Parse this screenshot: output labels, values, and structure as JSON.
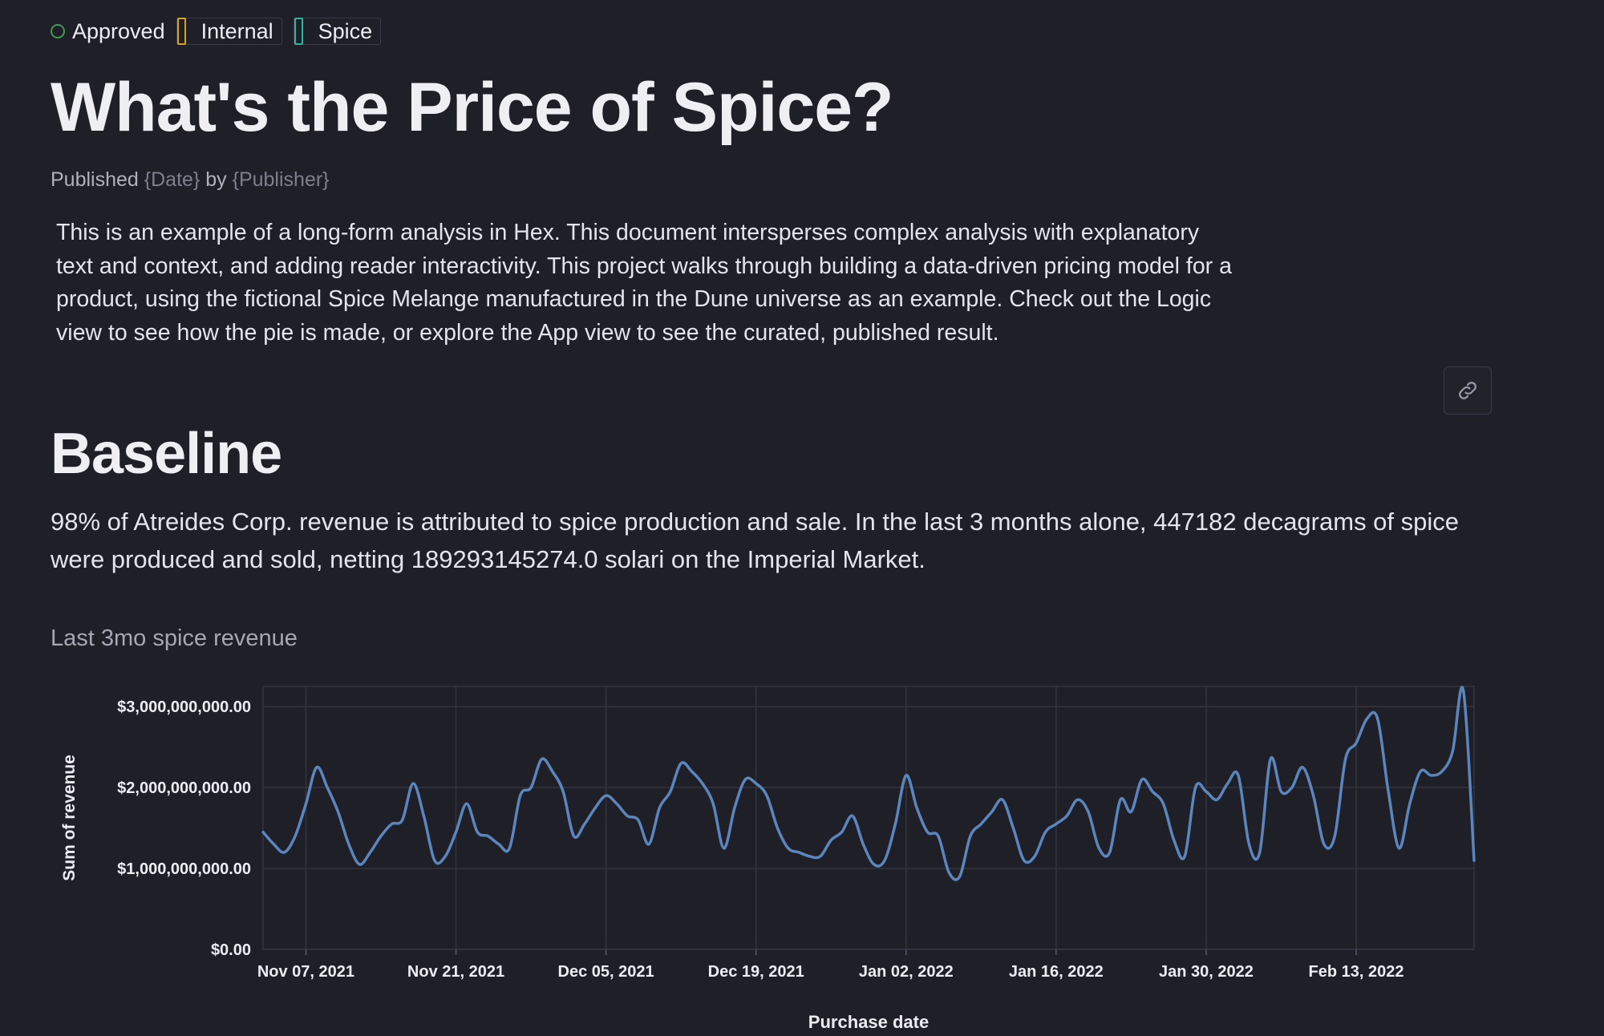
{
  "tags": {
    "approved": "Approved",
    "internal": "Internal",
    "spice": "Spice"
  },
  "colors": {
    "accent_line": "#5b86bd",
    "approved": "#3d9a53",
    "internal": "#d3a429",
    "spice": "#2eb5a2",
    "background": "#1f1f28"
  },
  "title": "What's the Price of Spice?",
  "published": {
    "prefix": "Published",
    "date": "{Date}",
    "by": "by",
    "publisher": "{Publisher}"
  },
  "intro": "This is an example of a long-form analysis in Hex. This document intersperses complex analysis with explanatory text and context, and adding reader interactivity. This project walks through building a data-driven pricing model for a product, using the fictional Spice Melange manufactured in the Dune universe as an example. Check out the Logic view to see how the pie is made, or explore the App view to see the curated, published result.",
  "link_icon": "link-icon",
  "section_title": "Baseline",
  "summary": "98% of Atreides Corp. revenue is attributed to spice production and sale. In the last 3 months alone, 447182  decagrams of spice were produced and sold, netting 189293145274.0 solari on the Imperial Market.",
  "chart_data": {
    "type": "line",
    "title": "Last 3mo spice revenue",
    "xlabel": "Purchase date",
    "ylabel": "Sum of revenue",
    "ylim": [
      0,
      3250000000
    ],
    "yticks": [
      0,
      1000000000,
      2000000000,
      3000000000
    ],
    "ytick_labels": [
      "$0.00",
      "$1,000,000,000.00",
      "$2,000,000,000.00",
      "$3,000,000,000.00"
    ],
    "x_start": "Nov 03, 2021",
    "x_end": "Feb 24, 2022",
    "xticks": [
      "Nov 07, 2021",
      "Nov 21, 2021",
      "Dec 05, 2021",
      "Dec 19, 2021",
      "Jan 02, 2022",
      "Jan 16, 2022",
      "Jan 30, 2022",
      "Feb 13, 2022"
    ],
    "xtick_days": [
      4,
      18,
      32,
      46,
      60,
      74,
      88,
      102
    ],
    "grid": true,
    "series": [
      {
        "name": "Sum of revenue",
        "x_days": [
          0,
          1,
          2,
          3,
          4,
          5,
          6,
          7,
          8,
          9,
          10,
          11,
          12,
          13,
          14,
          15,
          16,
          17,
          18,
          19,
          20,
          21,
          22,
          23,
          24,
          25,
          26,
          27,
          28,
          29,
          30,
          31,
          32,
          33,
          34,
          35,
          36,
          37,
          38,
          39,
          40,
          41,
          42,
          43,
          44,
          45,
          46,
          47,
          48,
          49,
          50,
          51,
          52,
          53,
          54,
          55,
          56,
          57,
          58,
          59,
          60,
          61,
          62,
          63,
          64,
          65,
          66,
          67,
          68,
          69,
          70,
          71,
          72,
          73,
          74,
          75,
          76,
          77,
          78,
          79,
          80,
          81,
          82,
          83,
          84,
          85,
          86,
          87,
          88,
          89,
          90,
          91,
          92,
          93,
          94,
          95,
          96,
          97,
          98,
          99,
          100,
          101,
          102,
          103,
          104,
          105,
          106,
          107,
          108,
          109,
          110,
          111,
          112,
          113
        ],
        "values": [
          1450000000,
          1300000000,
          1200000000,
          1400000000,
          1800000000,
          2250000000,
          2000000000,
          1700000000,
          1300000000,
          1050000000,
          1200000000,
          1400000000,
          1550000000,
          1600000000,
          2050000000,
          1650000000,
          1100000000,
          1150000000,
          1450000000,
          1800000000,
          1450000000,
          1400000000,
          1300000000,
          1250000000,
          1900000000,
          2000000000,
          2350000000,
          2200000000,
          1950000000,
          1400000000,
          1550000000,
          1750000000,
          1900000000,
          1800000000,
          1650000000,
          1600000000,
          1300000000,
          1750000000,
          1950000000,
          2300000000,
          2200000000,
          2050000000,
          1800000000,
          1250000000,
          1750000000,
          2100000000,
          2050000000,
          1900000000,
          1500000000,
          1250000000,
          1200000000,
          1150000000,
          1150000000,
          1350000000,
          1450000000,
          1650000000,
          1300000000,
          1050000000,
          1100000000,
          1550000000,
          2150000000,
          1750000000,
          1450000000,
          1400000000,
          950000000,
          900000000,
          1400000000,
          1550000000,
          1700000000,
          1850000000,
          1500000000,
          1100000000,
          1150000000,
          1450000000,
          1550000000,
          1650000000,
          1850000000,
          1700000000,
          1250000000,
          1200000000,
          1850000000,
          1700000000,
          2100000000,
          1950000000,
          1800000000,
          1350000000,
          1150000000,
          2000000000,
          1950000000,
          1850000000,
          2050000000,
          2150000000,
          1300000000,
          1200000000,
          2350000000,
          1950000000,
          2000000000,
          2250000000,
          1900000000,
          1300000000,
          1400000000,
          2350000000,
          2550000000,
          2850000000,
          2850000000,
          1950000000,
          1250000000,
          1800000000,
          2200000000,
          2150000000,
          2200000000,
          2450000000,
          3200000000,
          1100000000
        ]
      }
    ]
  }
}
